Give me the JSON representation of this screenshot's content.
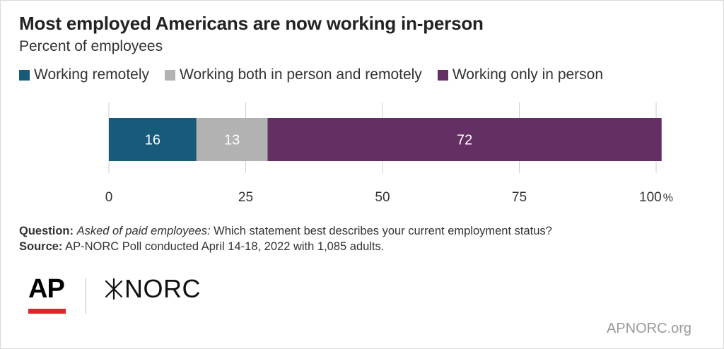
{
  "title": "Most employed Americans are now working in-person",
  "subtitle": "Percent of employees",
  "legend": [
    {
      "label": "Working remotely",
      "color": "#175a7a"
    },
    {
      "label": "Working both in person and remotely",
      "color": "#b2b2b2"
    },
    {
      "label": "Working only in person",
      "color": "#642f62"
    }
  ],
  "chart_data": {
    "type": "bar",
    "orientation": "horizontal",
    "stacked": true,
    "series": [
      {
        "name": "Working remotely",
        "values": [
          16
        ],
        "color": "#175a7a"
      },
      {
        "name": "Working both in person and remotely",
        "values": [
          13
        ],
        "color": "#b2b2b2"
      },
      {
        "name": "Working only in person",
        "values": [
          72
        ],
        "color": "#642f62"
      }
    ],
    "xlim": [
      0,
      100
    ],
    "ticks": [
      0,
      25,
      50,
      75,
      100
    ],
    "tick_suffix": "%",
    "grid": true,
    "legend_position": "top-left"
  },
  "notes": {
    "question_label": "Question:",
    "question_italic": "Asked of paid employees:",
    "question_text": "Which statement best describes your current employment status?",
    "source_label": "Source:",
    "source_text": "AP-NORC Poll conducted April 14-18, 2022 with 1,085 adults."
  },
  "logos": {
    "ap": "AP",
    "norc": "NORC",
    "norc_icon": "asterisk-star-icon"
  },
  "site": "APNORC.org"
}
